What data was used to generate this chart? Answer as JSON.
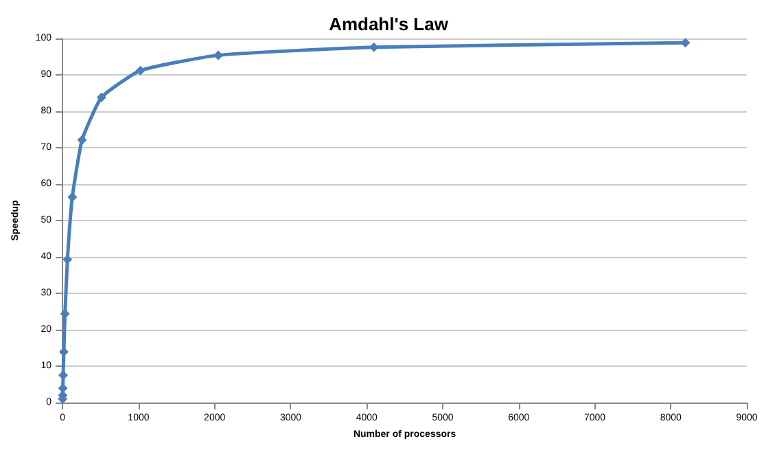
{
  "chart_data": {
    "type": "line",
    "title": "Amdahl's Law",
    "xlabel": "Number of processors",
    "ylabel": "Speedup",
    "x": [
      1,
      2,
      4,
      8,
      16,
      32,
      64,
      128,
      256,
      512,
      1024,
      2048,
      4096,
      8192
    ],
    "series": [
      {
        "color": "#4a7ebb",
        "values": [
          1,
          2,
          3.9,
          7.5,
          13.9,
          24.4,
          39.3,
          56.4,
          72.1,
          83.8,
          91.2,
          95.4,
          97.6,
          98.8
        ]
      }
    ],
    "xlim": [
      0,
      9000
    ],
    "xticks": [
      0,
      1000,
      2000,
      3000,
      4000,
      5000,
      6000,
      7000,
      8000,
      9000
    ],
    "ylim": [
      0,
      100
    ],
    "yticks": [
      0,
      10,
      20,
      30,
      40,
      50,
      60,
      70,
      80,
      90,
      100
    ],
    "grid": "y",
    "marker": "diamond",
    "line_style": "solid"
  }
}
